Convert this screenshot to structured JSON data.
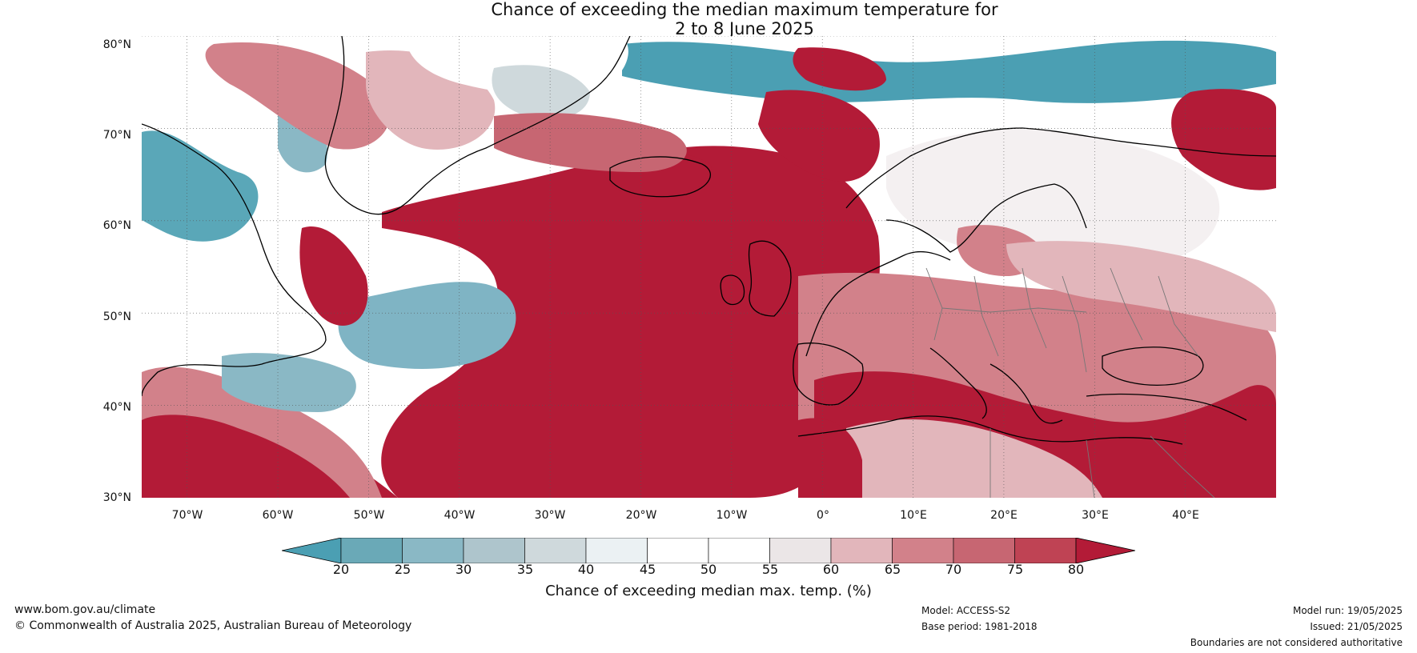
{
  "title": {
    "line1": "Chance of exceeding the median maximum temperature for",
    "line2": "2 to 8 June 2025"
  },
  "map": {
    "lat_labels": [
      "80°N",
      "70°N",
      "60°N",
      "50°N",
      "40°N",
      "30°N"
    ],
    "lon_labels": [
      "70°W",
      "60°W",
      "50°W",
      "40°W",
      "30°W",
      "20°W",
      "10°W",
      "0°",
      "10°E",
      "20°E",
      "30°E",
      "40°E"
    ],
    "lat_range": [
      30,
      80
    ],
    "lon_range": [
      -75,
      50
    ],
    "colors": {
      "very_warm": "#b31b37",
      "warm": "#c8606d",
      "mild_warm": "#e2b3b8",
      "neutral": "#ffffff",
      "mild_cool": "#c9d9dd",
      "cool": "#7fb4c4",
      "very_cool": "#3f9db3",
      "coastline": "#000000",
      "borders": "#777777"
    }
  },
  "colorbar": {
    "ticks": [
      "20",
      "25",
      "30",
      "35",
      "40",
      "45",
      "50",
      "55",
      "60",
      "65",
      "70",
      "75",
      "80"
    ],
    "colors": [
      "#4b9fb3",
      "#6aa9b7",
      "#8ab8c5",
      "#aec5cc",
      "#cfd9dc",
      "#ebf1f3",
      "#ffffff",
      "#ffffff",
      "#ebe6e7",
      "#e2b6bb",
      "#d2818a",
      "#c76672",
      "#bf4354",
      "#b31b37"
    ],
    "label": "Chance of exceeding median max. temp. (%)"
  },
  "footer": {
    "website": "www.bom.gov.au/climate",
    "copyright": "© Commonwealth of Australia 2025, Australian Bureau of Meteorology",
    "model": "Model: ACCESS-S2",
    "base_period": "Base period: 1981-2018",
    "model_run": "Model run: 19/05/2025",
    "issued": "Issued: 21/05/2025",
    "disclaimer": "Boundaries are not considered authoritative"
  }
}
